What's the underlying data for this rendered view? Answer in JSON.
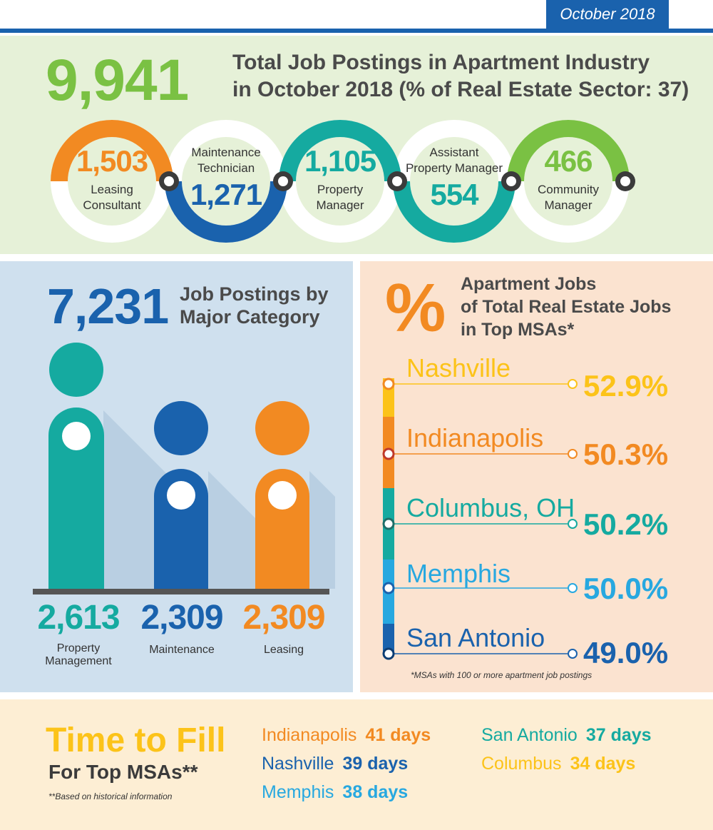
{
  "date": "October 2018",
  "overview": {
    "total": "9,941",
    "title_line1": "Total Job Postings in Apartment Industry",
    "title_line2": "in October 2018 (% of Real Estate Sector: 37)",
    "rings": [
      {
        "value": "1,503",
        "label1": "Leasing",
        "label2": "Consultant",
        "color": "#f28a22"
      },
      {
        "value": "1,271",
        "label1": "Maintenance",
        "label2": "Technician",
        "color": "#1a62ad"
      },
      {
        "value": "1,105",
        "label1": "Property",
        "label2": "Manager",
        "color": "#15aaa0"
      },
      {
        "value": "554",
        "label1": "Assistant",
        "label2": "Property Manager",
        "color": "#15aaa0"
      },
      {
        "value": "466",
        "label1": "Community",
        "label2": "Manager",
        "color": "#7ac143"
      }
    ]
  },
  "category": {
    "total": "7,231",
    "title_line1": "Job Postings by",
    "title_line2": "Major Category",
    "items": [
      {
        "value": "2,613",
        "label1": "Property",
        "label2": "Management",
        "color": "#15aaa0"
      },
      {
        "value": "2,309",
        "label1": "Maintenance",
        "label2": "",
        "color": "#1a62ad"
      },
      {
        "value": "2,309",
        "label1": "Leasing",
        "label2": "",
        "color": "#f28a22"
      }
    ]
  },
  "msa": {
    "symbol": "%",
    "title_line1": "Apartment Jobs",
    "title_line2": "of Total Real Estate Jobs",
    "title_line3": "in Top MSAs*",
    "items": [
      {
        "city": "Nashville",
        "pct": "52.9%",
        "color": "#fcc319"
      },
      {
        "city": "Indianapolis",
        "pct": "50.3%",
        "color": "#f28a22"
      },
      {
        "city": "Columbus, OH",
        "pct": "50.2%",
        "color": "#15aaa0"
      },
      {
        "city": "Memphis",
        "pct": "50.0%",
        "color": "#27a8e0"
      },
      {
        "city": "San Antonio",
        "pct": "49.0%",
        "color": "#1a62ad"
      }
    ],
    "footnote": "*MSAs with 100 or more apartment job postings"
  },
  "time_to_fill": {
    "title": "Time to Fill",
    "subtitle": "For Top MSAs**",
    "footnote": "**Based on historical information",
    "items": [
      {
        "city": "Indianapolis",
        "days": "41 days",
        "color": "#f28a22"
      },
      {
        "city": "Nashville",
        "days": "39 days",
        "color": "#1a62ad"
      },
      {
        "city": "Memphis",
        "days": "38 days",
        "color": "#27a8e0"
      },
      {
        "city": "San Antonio",
        "days": "37 days",
        "color": "#15aaa0"
      },
      {
        "city": "Columbus",
        "days": "34 days",
        "color": "#fcc319"
      }
    ]
  }
}
